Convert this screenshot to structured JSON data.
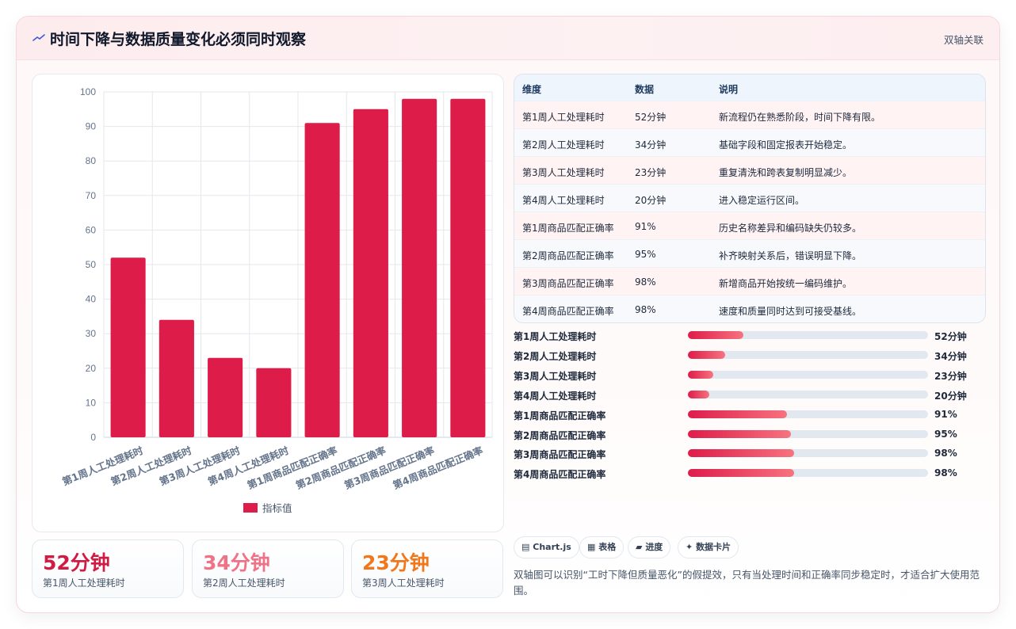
{
  "header": {
    "title": "时间下降与数据质量变化必须同时观察",
    "tag": "双轴关联",
    "icon": "trend-line-icon"
  },
  "chart_data": {
    "type": "bar",
    "categories": [
      "第1周人工处理耗时",
      "第2周人工处理耗时",
      "第3周人工处理耗时",
      "第4周人工处理耗时",
      "第1周商品匹配正确率",
      "第2周商品匹配正确率",
      "第3周商品匹配正确率",
      "第4周商品匹配正确率"
    ],
    "series": [
      {
        "name": "指标值",
        "values": [
          52,
          34,
          23,
          20,
          91,
          95,
          98,
          98
        ],
        "color": "#de1c4a"
      }
    ],
    "ylim": [
      0,
      100
    ],
    "yticks": [
      "0",
      "10",
      "20",
      "30",
      "40",
      "50",
      "60",
      "70",
      "80",
      "90",
      "100"
    ],
    "grid": true,
    "legend": "bottom"
  },
  "kpis": [
    {
      "value": "52分钟",
      "label": "第1周人工处理耗时",
      "color": "#d01c45"
    },
    {
      "value": "34分钟",
      "label": "第2周人工处理耗时",
      "color": "#f07286"
    },
    {
      "value": "23分钟",
      "label": "第3周人工处理耗时",
      "color": "#f2771a"
    }
  ],
  "table": {
    "headers": [
      "维度",
      "数据",
      "说明"
    ],
    "rows": [
      [
        "第1周人工处理耗时",
        "52分钟",
        "新流程仍在熟悉阶段，时间下降有限。"
      ],
      [
        "第2周人工处理耗时",
        "34分钟",
        "基础字段和固定报表开始稳定。"
      ],
      [
        "第3周人工处理耗时",
        "23分钟",
        "重复清洗和跨表复制明显减少。"
      ],
      [
        "第4周人工处理耗时",
        "20分钟",
        "进入稳定运行区间。"
      ],
      [
        "第1周商品匹配正确率",
        "91%",
        "历史名称差异和编码缺失仍较多。"
      ],
      [
        "第2周商品匹配正确率",
        "95%",
        "补齐映射关系后，错误明显下降。"
      ],
      [
        "第3周商品匹配正确率",
        "98%",
        "新增商品开始按统一编码维护。"
      ],
      [
        "第4周商品匹配正确率",
        "98%",
        "速度和质量同时达到可接受基线。"
      ]
    ]
  },
  "progress": [
    {
      "label": "第1周人工处理耗时",
      "value": "52分钟",
      "fraction": 0.231
    },
    {
      "label": "第2周人工处理耗时",
      "value": "34分钟",
      "fraction": 0.155
    },
    {
      "label": "第3周人工处理耗时",
      "value": "23分钟",
      "fraction": 0.105
    },
    {
      "label": "第4周人工处理耗时",
      "value": "20分钟",
      "fraction": 0.089
    },
    {
      "label": "第1周商品匹配正确率",
      "value": "91%",
      "fraction": 0.413
    },
    {
      "label": "第2周商品匹配正确率",
      "value": "95%",
      "fraction": 0.429
    },
    {
      "label": "第3周商品匹配正确率",
      "value": "98%",
      "fraction": 0.442
    },
    {
      "label": "第4周商品匹配正确率",
      "value": "98%",
      "fraction": 0.442
    }
  ],
  "chips": [
    {
      "icon": "chart-icon",
      "glyph": "▤",
      "label": "Chart.js"
    },
    {
      "icon": "table-icon",
      "glyph": "▦",
      "label": "表格"
    },
    {
      "icon": "progress-icon",
      "glyph": "▰",
      "label": "进度"
    },
    {
      "icon": "card-icon",
      "glyph": "✦",
      "label": "数据卡片"
    }
  ],
  "note": "双轴图可以识别“工时下降但质量恶化”的假提效，只有当处理时间和正确率同步稳定时，才适合扩大使用范围。"
}
